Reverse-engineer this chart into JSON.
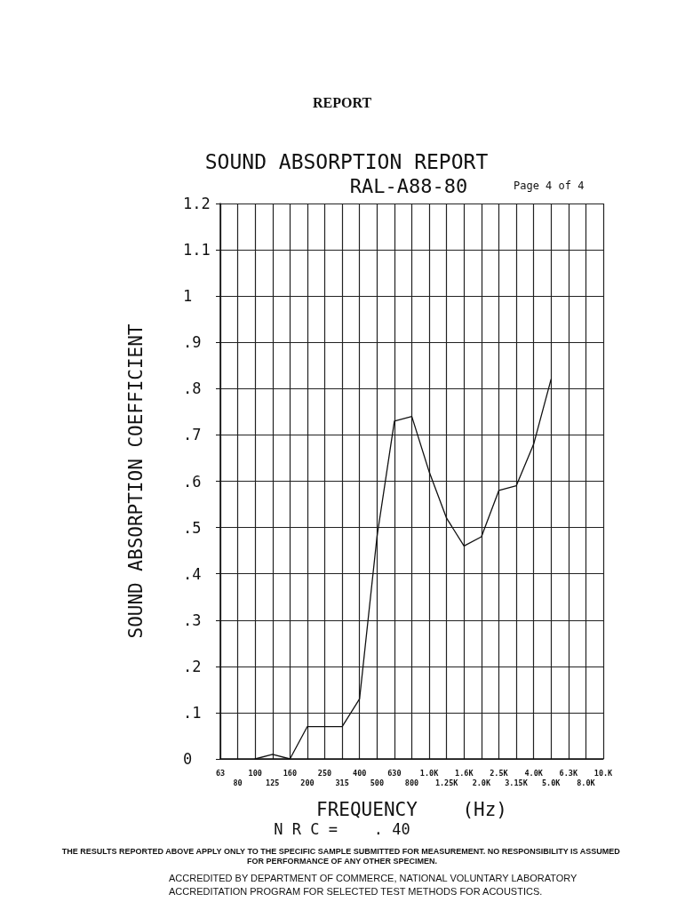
{
  "chart_data": {
    "type": "line",
    "title": "SOUND ABSORPTION REPORT",
    "subtitle": "RAL-A88-80",
    "xlabel": "FREQUENCY    (Hz)",
    "ylabel": "SOUND ABSORPTION COEFFICIENT",
    "annotations": [
      "REPORT",
      "Page 4 of 4",
      "N R C =    . 40",
      "THE RESULTS REPORTED ABOVE APPLY ONLY TO THE SPECIFIC SAMPLE SUBMITTED FOR MEASUREMENT. NO RESPONSIBILITY IS ASSUMED FOR PERFORMANCE OF ANY OTHER SPECIMEN.",
      "ACCREDITED BY DEPARTMENT OF COMMERCE, NATIONAL VOLUNTARY LABORATORY",
      "ACCREDITATION PROGRAM FOR SELECTED TEST METHODS FOR ACOUSTICS."
    ],
    "categories": [
      "63",
      "80",
      "100",
      "125",
      "160",
      "200",
      "250",
      "315",
      "400",
      "500",
      "630",
      "800",
      "1.0K",
      "1.25K",
      "1.6K",
      "2.0K",
      "2.5K",
      "3.15K",
      "4.0K",
      "5.0K",
      "6.3K",
      "8.0K",
      "10.K"
    ],
    "series": [
      {
        "color": "#111111",
        "values": [
          null,
          null,
          0,
          0.01,
          0,
          0.07,
          0.07,
          0.07,
          0.13,
          0.48,
          0.73,
          0.74,
          0.62,
          0.52,
          0.46,
          0.48,
          0.58,
          0.59,
          0.68,
          0.82,
          null,
          null,
          null
        ]
      }
    ],
    "ylim": [
      0,
      1.2
    ],
    "yticks": [
      {
        "value": 0,
        "label": "0"
      },
      {
        "value": 0.1,
        "label": ".1"
      },
      {
        "value": 0.2,
        "label": ".2"
      },
      {
        "value": 0.3,
        "label": ".3"
      },
      {
        "value": 0.4,
        "label": ".4"
      },
      {
        "value": 0.5,
        "label": ".5"
      },
      {
        "value": 0.6,
        "label": ".6"
      },
      {
        "value": 0.7,
        "label": ".7"
      },
      {
        "value": 0.8,
        "label": ".8"
      },
      {
        "value": 0.9,
        "label": ".9"
      },
      {
        "value": 1,
        "label": "1"
      },
      {
        "value": 1.1,
        "label": "1.1"
      },
      {
        "value": 1.2,
        "label": "1.2"
      }
    ],
    "grid": true,
    "marker": "none",
    "line_style": "solid"
  }
}
